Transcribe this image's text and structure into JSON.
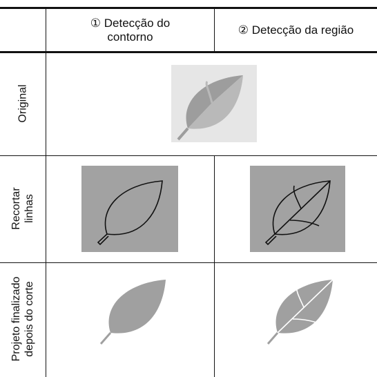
{
  "table": {
    "header": [
      "① Detecção do contorno",
      "② Detecção da região"
    ],
    "rows": [
      "Original",
      "Recortar linhas",
      "Projeto finalizado depois do corte"
    ]
  }
}
